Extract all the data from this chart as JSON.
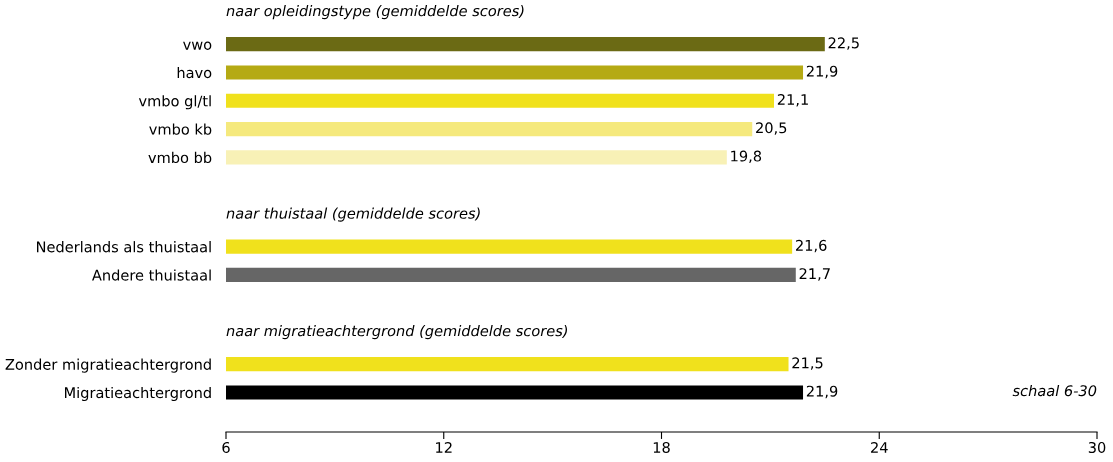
{
  "chart_data": [
    {
      "type": "bar",
      "orientation": "horizontal",
      "title": "naar opleidingstype (gemiddelde scores)",
      "categories": [
        "vwo",
        "havo",
        "vmbo gl/tl",
        "vmbo kb",
        "vmbo bb"
      ],
      "values": [
        22.5,
        21.9,
        21.1,
        20.5,
        19.8
      ],
      "colors": [
        "#6b6a14",
        "#b5aa14",
        "#f0e11c",
        "#f5e97d",
        "#f8f1b6"
      ],
      "value_labels": [
        "22,5",
        "21,9",
        "21,1",
        "20,5",
        "19,8"
      ],
      "xlim": [
        6,
        30
      ],
      "xticks": [
        6,
        12,
        18,
        24,
        30
      ],
      "tick_labels": "y"
    },
    {
      "type": "bar",
      "orientation": "horizontal",
      "title": "naar thuistaal (gemiddelde scores)",
      "categories": [
        "Nederlands als thuistaal",
        "Andere thuistaal"
      ],
      "values": [
        21.6,
        21.7
      ],
      "colors": [
        "#f0e11c",
        "#666666"
      ],
      "value_labels": [
        "21,6",
        "21,7"
      ],
      "xlim": [
        6,
        30
      ],
      "xticks": [
        6,
        12,
        18,
        24,
        30
      ],
      "tick_labels": "y"
    },
    {
      "type": "bar",
      "orientation": "horizontal",
      "title": "naar migratieachtergrond (gemiddelde scores)",
      "categories": [
        "Zonder migratieachtergrond",
        "Migratieachtergrond"
      ],
      "values": [
        21.5,
        21.9
      ],
      "colors": [
        "#f0e11c",
        "#000000"
      ],
      "value_labels": [
        "21,5",
        "21,9"
      ],
      "xlim": [
        6,
        30
      ],
      "xticks": [
        6,
        12,
        18,
        24,
        30
      ],
      "annotations": [
        "schaal 6-30"
      ]
    }
  ]
}
